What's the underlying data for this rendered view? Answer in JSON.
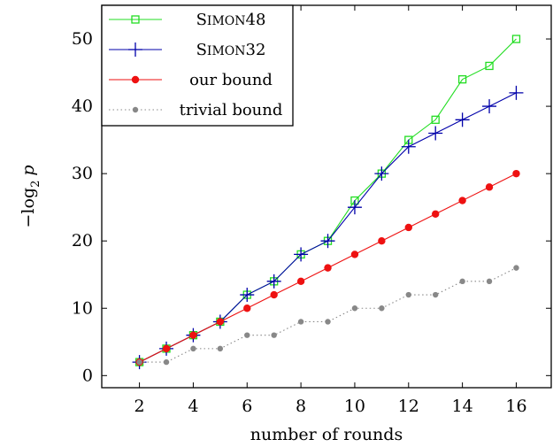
{
  "chart_data": {
    "type": "line",
    "xlabel": "number of rounds",
    "ylabel": "−log",
    "ylabel_sub": "2",
    "ylabel_var": "p",
    "xlim": [
      0.6,
      17.3
    ],
    "ylim": [
      -1.8,
      55
    ],
    "xticks": [
      2,
      4,
      6,
      8,
      10,
      12,
      14,
      16
    ],
    "yticks": [
      0,
      10,
      20,
      30,
      40,
      50
    ],
    "legend_position": "top-left",
    "series": [
      {
        "name_first": "S",
        "name_caps": "IMON",
        "name_rest": "48",
        "name": "Simon48",
        "color": "#22dd22",
        "marker": "square-open",
        "dash": "solid",
        "x": [
          2,
          3,
          4,
          5,
          6,
          7,
          8,
          9,
          10,
          11,
          12,
          13,
          14,
          15,
          16
        ],
        "y": [
          2,
          4,
          6,
          8,
          12,
          14,
          18,
          20,
          26,
          30,
          35,
          38,
          44,
          46,
          50
        ]
      },
      {
        "name_first": "S",
        "name_caps": "IMON",
        "name_rest": "32",
        "name": "Simon32",
        "color": "#0000aa",
        "marker": "plus",
        "dash": "solid",
        "x": [
          2,
          3,
          4,
          5,
          6,
          7,
          8,
          9,
          10,
          11,
          12,
          13,
          14,
          15,
          16
        ],
        "y": [
          2,
          4,
          6,
          8,
          12,
          14,
          18,
          20,
          25,
          30,
          34,
          36,
          38,
          40,
          42
        ]
      },
      {
        "name": "our bound",
        "color": "#ee1111",
        "marker": "dot",
        "dash": "solid",
        "x": [
          2,
          3,
          4,
          5,
          6,
          7,
          8,
          9,
          10,
          11,
          12,
          13,
          14,
          15,
          16
        ],
        "y": [
          2,
          4,
          6,
          8,
          10,
          12,
          14,
          16,
          18,
          20,
          22,
          24,
          26,
          28,
          30
        ]
      },
      {
        "name": "trivial bound",
        "color": "#888888",
        "marker": "dot",
        "dash": "dotted",
        "x": [
          2,
          3,
          4,
          5,
          6,
          7,
          8,
          9,
          10,
          11,
          12,
          13,
          14,
          15,
          16
        ],
        "y": [
          2,
          2,
          4,
          4,
          6,
          6,
          8,
          8,
          10,
          10,
          12,
          12,
          14,
          14,
          16
        ]
      }
    ]
  }
}
